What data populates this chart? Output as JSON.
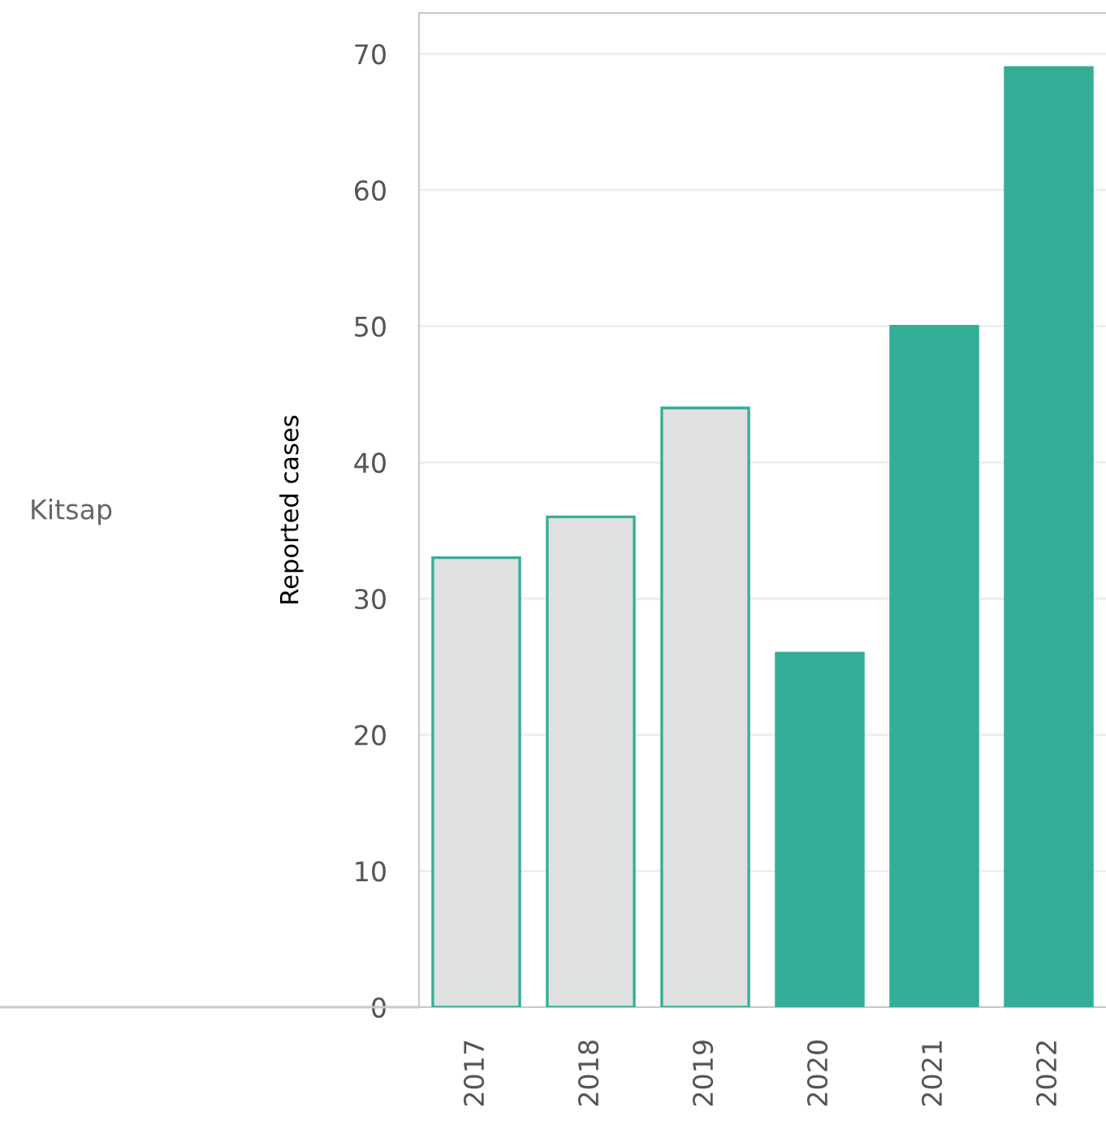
{
  "chart_data": {
    "type": "bar",
    "ylabel": "Reported cases",
    "annotations": [
      "Kitsap"
    ],
    "categories": [
      "2017",
      "2018",
      "2019",
      "2020",
      "2021",
      "2022"
    ],
    "values": [
      33,
      36,
      44,
      26,
      50,
      69
    ],
    "colors": [
      "#e0e0e0",
      "#e0e0e0",
      "#e0e0e0",
      "#33ae96",
      "#33ae96",
      "#33ae96"
    ],
    "ylim": [
      0,
      73
    ],
    "yticks": [
      0,
      10,
      20,
      30,
      40,
      50,
      60,
      70
    ],
    "grid": "y"
  }
}
